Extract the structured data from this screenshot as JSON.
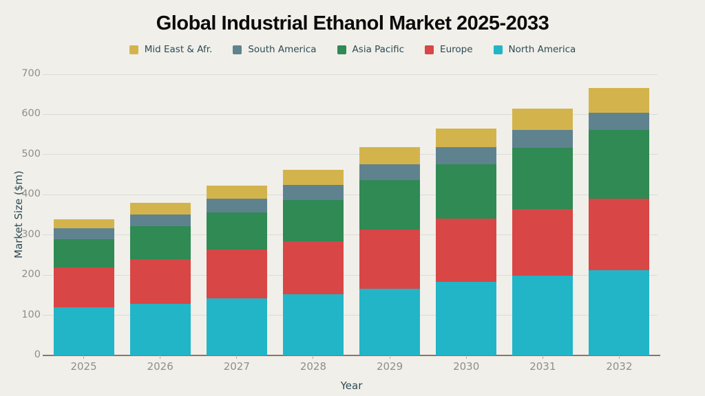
{
  "chart_data": {
    "type": "bar",
    "stacked": true,
    "title": "Global Industrial Ethanol Market 2025-2033",
    "xlabel": "Year",
    "ylabel": "Market Size ($m)",
    "categories": [
      "2025",
      "2026",
      "2027",
      "2028",
      "2029",
      "2030",
      "2031",
      "2032"
    ],
    "ylim": [
      0,
      700
    ],
    "ytick_interval": 100,
    "grid": true,
    "legend_position": "top",
    "legend_order": [
      "Mid East & Afr.",
      "South America",
      "Asia Pacific",
      "Europe",
      "North America"
    ],
    "series": [
      {
        "name": "North America",
        "color": "#22b5c7",
        "values": [
          120,
          128,
          142,
          153,
          166,
          184,
          199,
          213
        ]
      },
      {
        "name": "Europe",
        "color": "#d84646",
        "values": [
          99,
          112,
          122,
          131,
          148,
          156,
          166,
          178
        ]
      },
      {
        "name": "Asia Pacific",
        "color": "#2f8a54",
        "values": [
          70,
          81,
          92,
          103,
          122,
          135,
          152,
          170
        ]
      },
      {
        "name": "South America",
        "color": "#5f828f",
        "values": [
          28,
          30,
          34,
          38,
          40,
          43,
          44,
          44
        ]
      },
      {
        "name": "Mid East & Afr.",
        "color": "#d3b44c",
        "values": [
          22,
          29,
          32,
          37,
          43,
          47,
          53,
          61
        ]
      }
    ]
  },
  "colors": {
    "background": "#f0efe9",
    "gridline": "#dcdcd6",
    "axis_line": "#8a746a",
    "tick_label": "#8f8f89",
    "axis_title": "#2c4a54",
    "title": "#0b0b0b"
  }
}
